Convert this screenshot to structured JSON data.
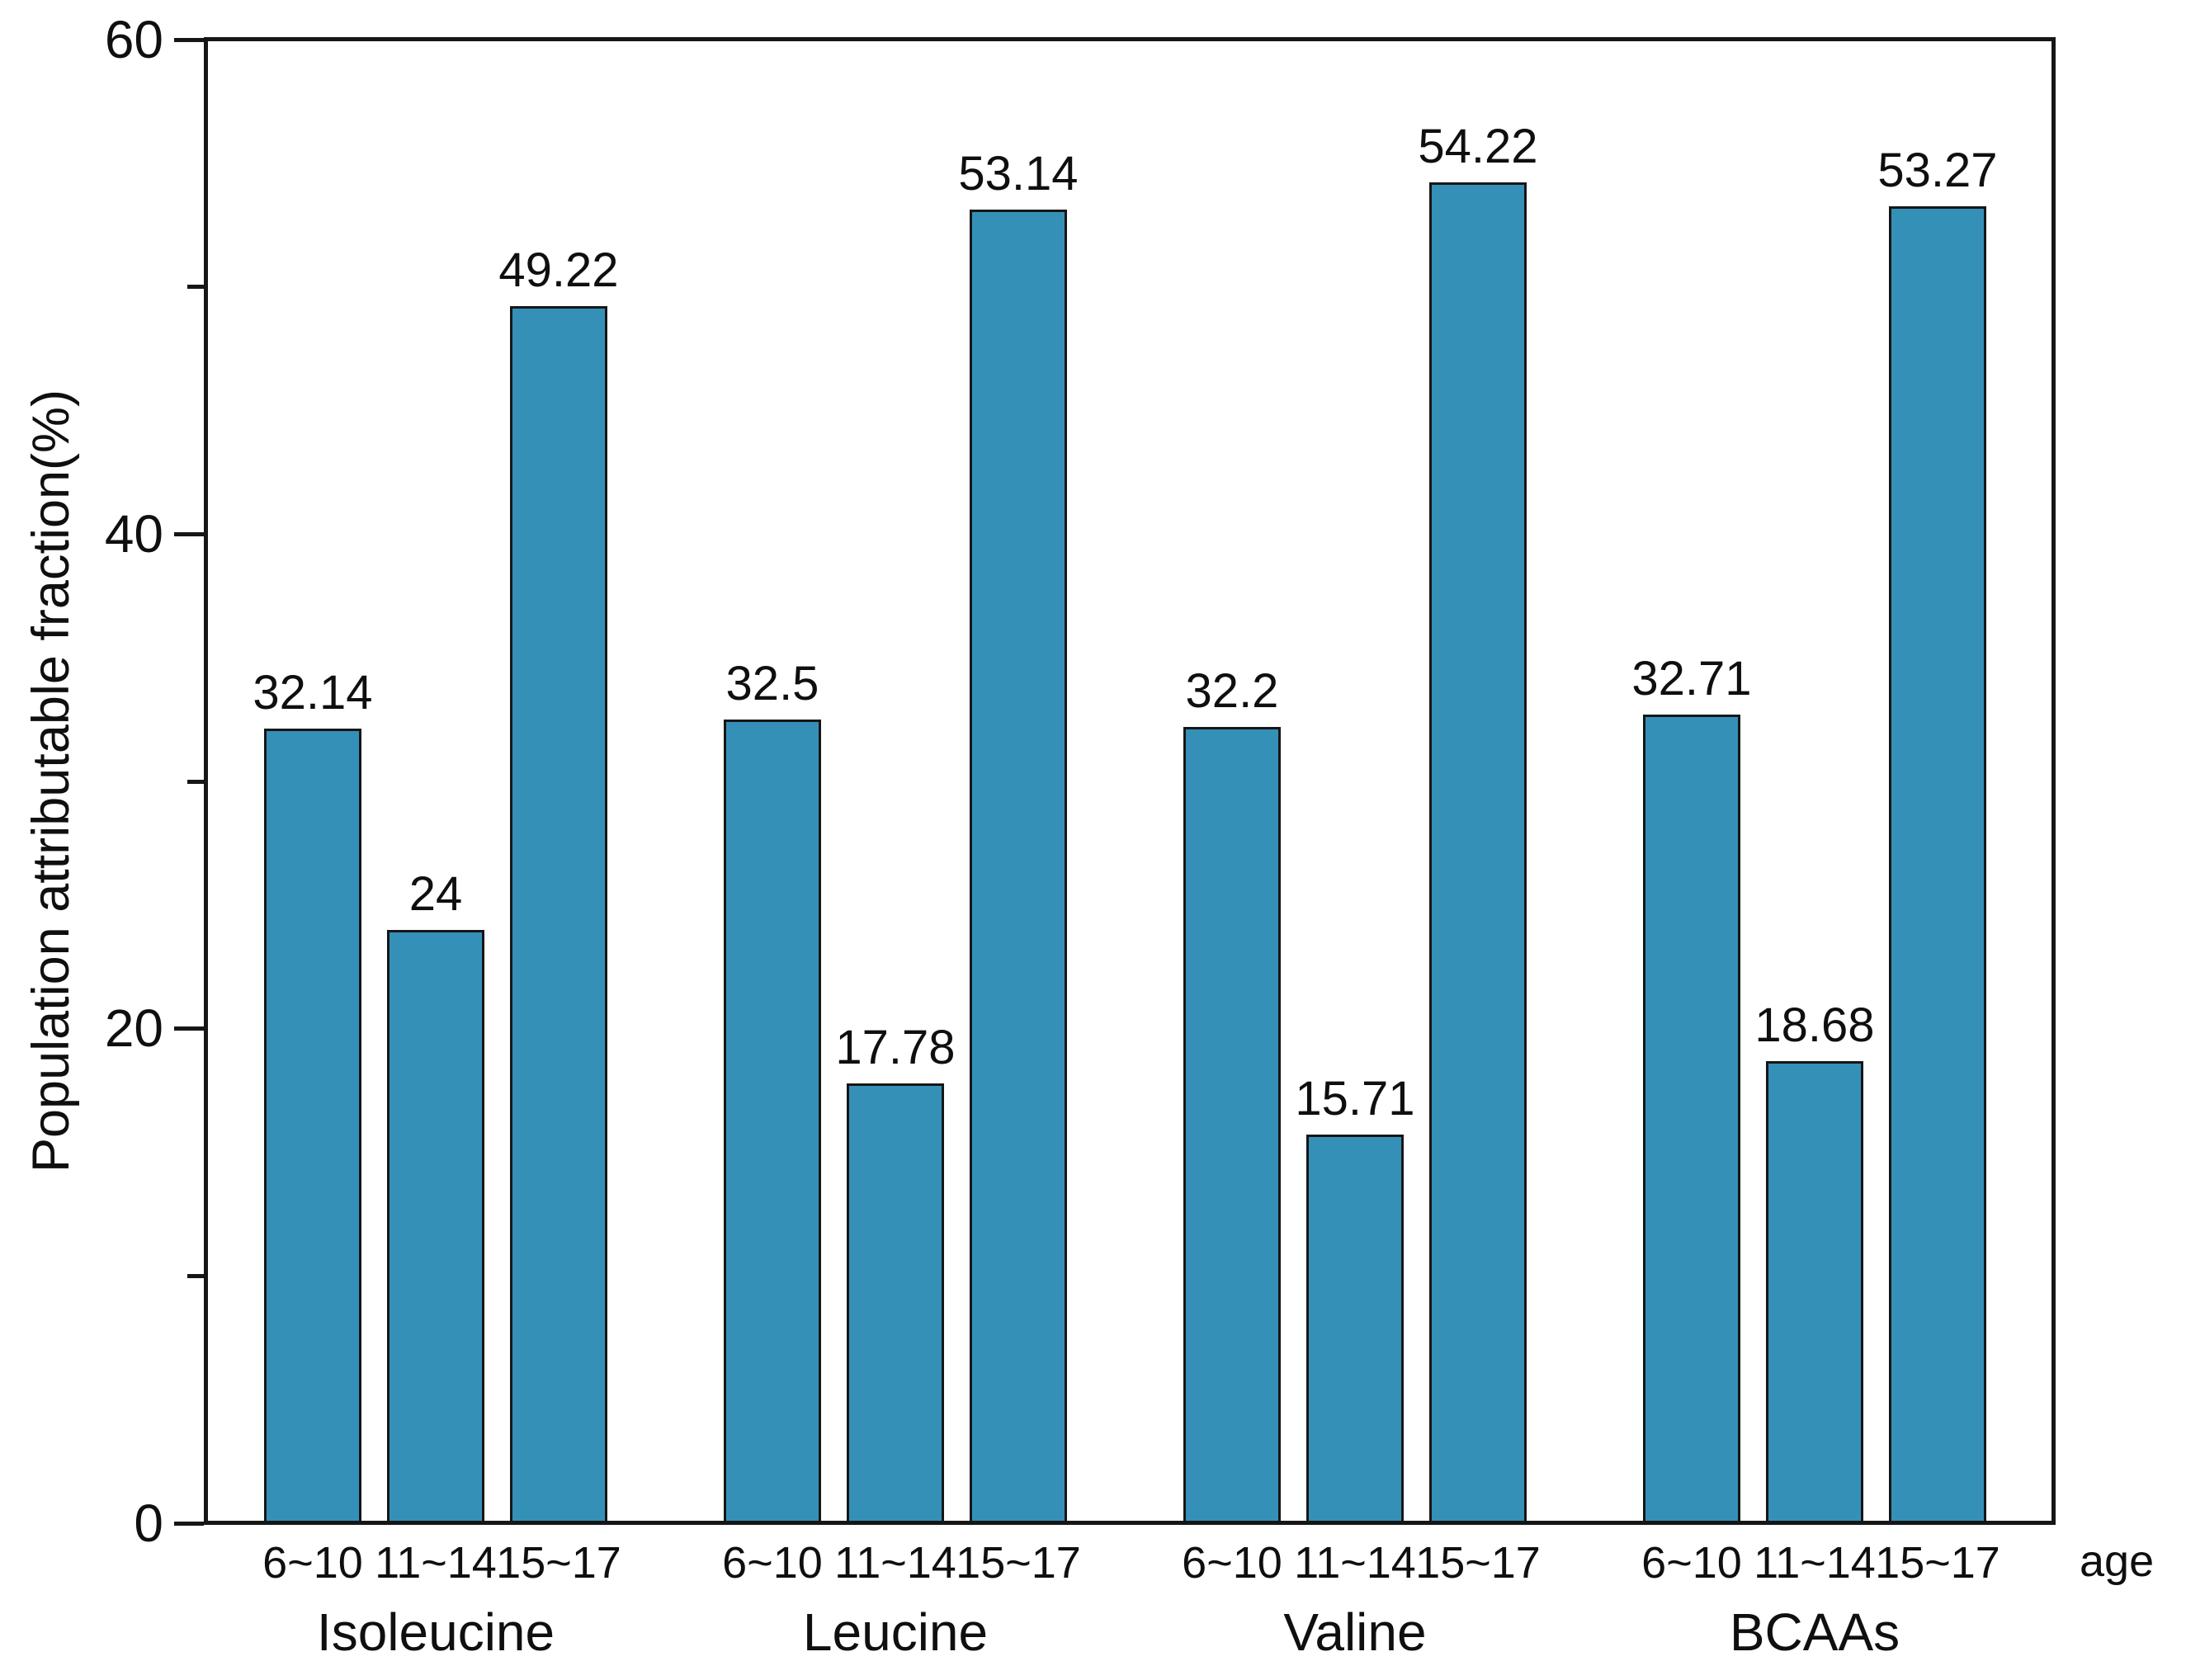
{
  "chart_data": {
    "type": "bar",
    "title": "",
    "ylabel": "Population attributable fraction(%)",
    "xlabel": "age",
    "ylim": [
      0,
      60
    ],
    "y_major_ticks": [
      0,
      20,
      40,
      60
    ],
    "y_minor_ticks": [
      10,
      30,
      50
    ],
    "grid": false,
    "legend": "none",
    "bar_color": "#3590b8",
    "bar_border_color": "#161616",
    "categories": [
      "6~10",
      "11~14",
      "15~17"
    ],
    "groups": [
      {
        "label": "Isoleucine",
        "values": [
          32.14,
          24,
          49.22
        ]
      },
      {
        "label": "Leucine",
        "values": [
          32.5,
          17.78,
          53.14
        ]
      },
      {
        "label": "Valine",
        "values": [
          32.2,
          15.71,
          54.22
        ]
      },
      {
        "label": "BCAAs",
        "values": [
          32.71,
          18.68,
          53.27
        ]
      }
    ]
  }
}
